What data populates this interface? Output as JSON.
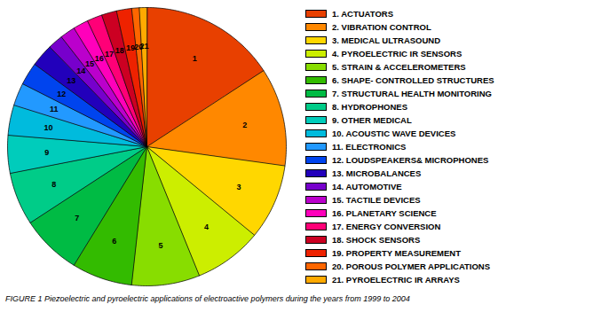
{
  "chart_data": {
    "type": "pie",
    "title": "FIGURE 1   Piezoelectric and pyroelectric applications of electroactive polymers during the years from 1999 to 2004",
    "categories": [
      "1",
      "2",
      "3",
      "4",
      "5",
      "6",
      "7",
      "8",
      "9",
      "10",
      "11",
      "12",
      "13",
      "14",
      "15",
      "16",
      "17",
      "18",
      "19",
      "20",
      "21"
    ],
    "values": [
      18,
      13,
      10,
      9,
      9,
      8,
      8,
      7,
      5,
      4,
      3,
      3,
      3,
      2,
      2,
      2,
      2,
      2,
      2,
      1,
      1
    ],
    "colors": [
      "#E84000",
      "#FF8800",
      "#FFD700",
      "#CCEE00",
      "#88DD00",
      "#33BB00",
      "#00BB44",
      "#00CC88",
      "#00CCBB",
      "#00BBDD",
      "#2299FF",
      "#0044EE",
      "#2200BB",
      "#7700CC",
      "#BB00CC",
      "#FF00BB",
      "#FF0077",
      "#CC0022",
      "#EE2200",
      "#FF6600",
      "#FFAA00"
    ],
    "legend_labels": [
      "1. ACTUATORS",
      "2. VIBRATION CONTROL",
      "3. MEDICAL ULTRASOUND",
      "4. PYROELECTRIC IR SENSORS",
      "5. STRAIN & ACCELEROMETERS",
      "6. SHAPE- CONTROLLED STRUCTURES",
      "7. STRUCTURAL HEALTH MONITORING",
      "8. HYDROPHONES",
      "9. OTHER MEDICAL",
      "10. ACOUSTIC WAVE DEVICES",
      "11. ELECTRONICS",
      "12. LOUDSPEAKERS& MICROPHONES",
      "13. MICROBALANCES",
      "14. AUTOMOTIVE",
      "15. TACTILE DEVICES",
      "16. PLANETARY SCIENCE",
      "17. ENERGY CONVERSION",
      "18. SHOCK SENSORS",
      "19. PROPERTY MEASUREMENT",
      "20. POROUS POLYMER APPLICATIONS",
      "21. PYROELECTRIC IR ARRAYS"
    ],
    "legend": "right"
  }
}
